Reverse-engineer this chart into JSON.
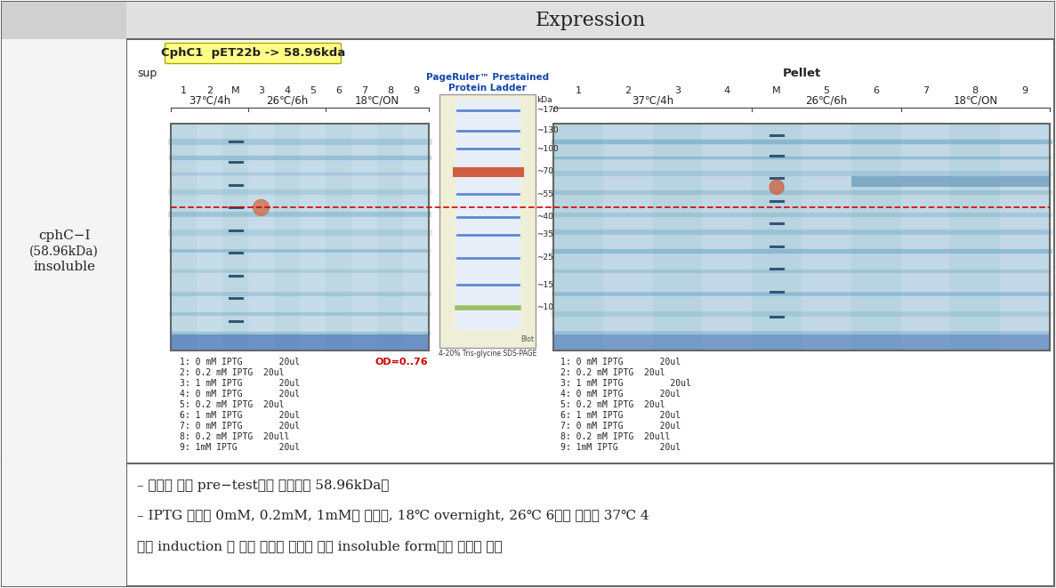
{
  "title": "Expression",
  "left_label_line1": "cphC−I",
  "left_label_line2": "(58.96kDa)",
  "left_label_line3": "insoluble",
  "yellow_box_text": "CphC1  pET22b -> 58.96kda",
  "sup_label": "sup",
  "pellet_label": "Pellet",
  "left_temp_labels": [
    "37℃/4h",
    "26℃/6h",
    "18℃/ON"
  ],
  "right_temp_labels": [
    "37℃/4h",
    "26℃/6h",
    "18℃/ON"
  ],
  "left_lane_numbers": [
    "1",
    "2",
    "M",
    "3",
    "4",
    "5",
    "6",
    "7",
    "8",
    "9"
  ],
  "right_lane_numbers": [
    "1",
    "2",
    "3",
    "4",
    "M",
    "5",
    "6",
    "7",
    "8",
    "9"
  ],
  "od_text": "OD=0..76",
  "ladder_title_line1": "PageRuler™ Prestained",
  "ladder_title_line2": "Protein Ladder",
  "ladder_labels": [
    "~170",
    "~130",
    "~100",
    "~70",
    "~55",
    "~40",
    "~35",
    "~25",
    "~15",
    "~10"
  ],
  "ladder_bottom_text": "4-20% Tris-glycine SDS-PAGE",
  "left_iptg_list": [
    "1: 0 mM IPTG       20ul",
    "2: 0.2 mM IPTG  20ul",
    "3: 1 mM IPTG       20ul",
    "4: 0 mM IPTG       20ul",
    "5: 0.2 mM IPTG  20ul",
    "6: 1 mM IPTG       20ul",
    "7: 0 mM IPTG       20ul",
    "8: 0.2 mM IPTG  20ull",
    "9: 1mM IPTG        20ul"
  ],
  "right_iptg_list": [
    "1: 0 mM IPTG       20ul",
    "2: 0.2 mM IPTG  20ul",
    "3: 1 mM IPTG         20ul",
    "4: 0 mM IPTG       20ul",
    "5: 0.2 mM IPTG  20ul",
    "6: 1 mM IPTG       20ul",
    "7: 0 mM IPTG       20ul",
    "8: 0.2 mM IPTG  20ull",
    "9: 1mM IPTG        20ul"
  ],
  "bottom_text_line1": "– 단백질 발현 pre−test결과 단백질은 58.96kDa임",
  "bottom_text_line2": "– IPTG 농도를 0mM, 0.2mM, 1mM로 하였고, 18℃ overnight, 26℃ 6시간 그리고 37℃ 4",
  "bottom_text_line3": "시간 induction 후 발현 패턴을 비교한 결과 insoluble form으로 발현이 확인",
  "bg_color": "#ffffff",
  "header_bg": "#e0e0e0",
  "left_col_bg": "#d0d0d0",
  "border_color": "#666666",
  "red_line_color": "#cc0000",
  "yellow_bg": "#ffff88"
}
